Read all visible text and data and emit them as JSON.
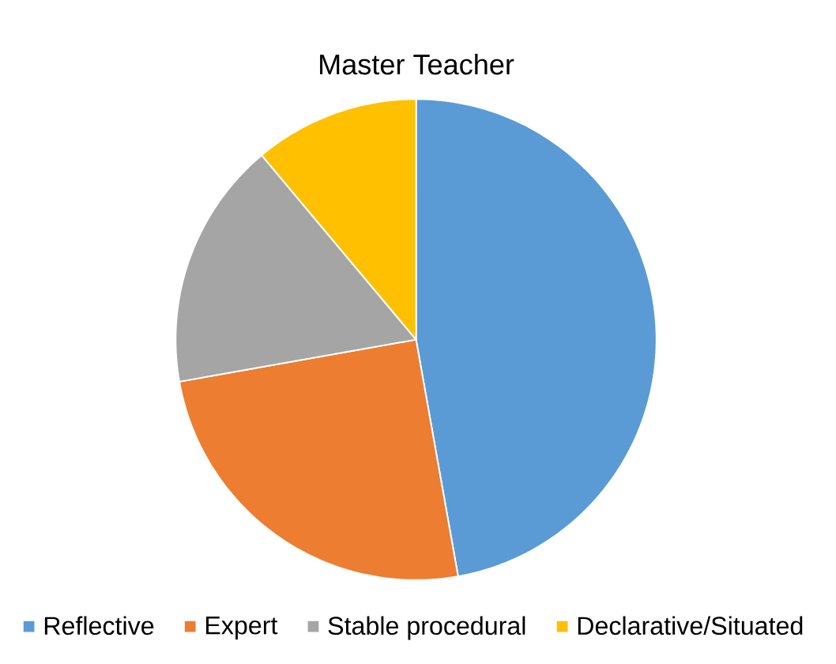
{
  "chart_data": {
    "type": "pie",
    "title": "Master Teacher",
    "categories": [
      "Reflective",
      "Expert",
      "Stable procedural",
      "Declarative/Situated"
    ],
    "values": [
      47.2,
      25,
      16.7,
      11.1
    ],
    "colors": [
      "#5b9bd5",
      "#ed7d31",
      "#a5a5a5",
      "#ffc000"
    ],
    "legend": "bottom"
  }
}
